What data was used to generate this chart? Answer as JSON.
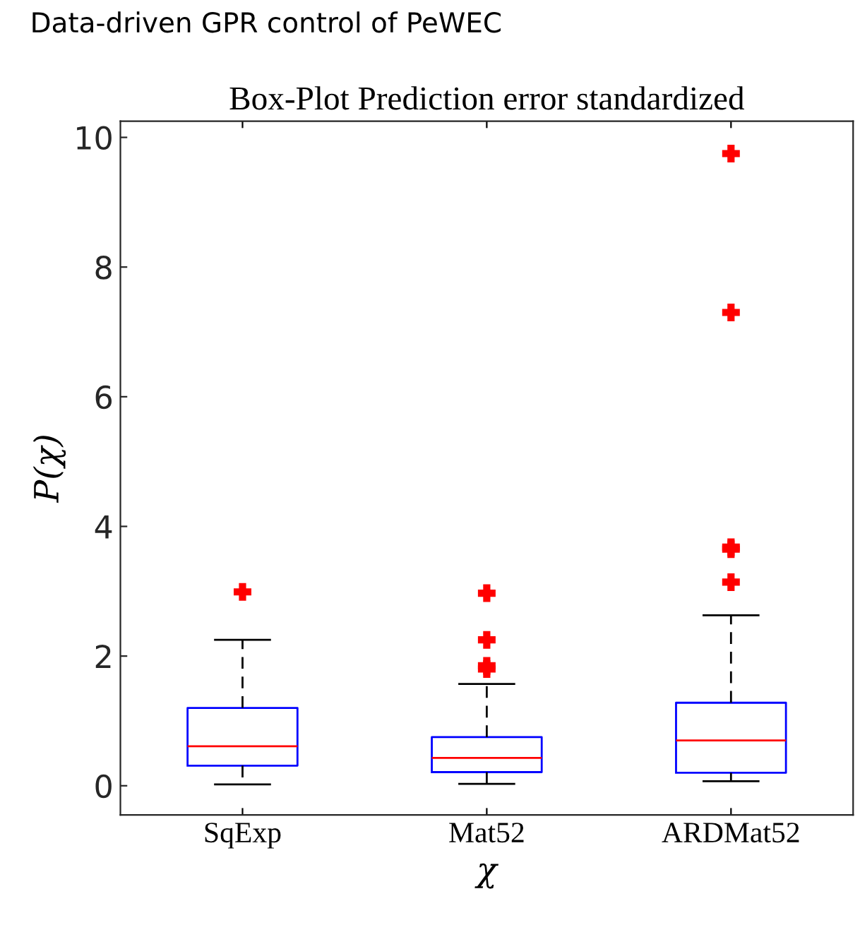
{
  "chart_data": {
    "type": "box",
    "title": "Box-Plot Prediction error standardized",
    "subtitle": "Data-driven GPR control of PeWEC",
    "xlabel": "χ",
    "ylabel": "P(χ)",
    "categories": [
      "SqExp",
      "Mat52",
      "ARDMat52"
    ],
    "boxes": [
      {
        "low": 0.02,
        "q1": 0.31,
        "median": 0.61,
        "q3": 1.2,
        "high": 2.25,
        "outliers": [
          2.99
        ]
      },
      {
        "low": 0.03,
        "q1": 0.21,
        "median": 0.43,
        "q3": 0.75,
        "high": 1.57,
        "outliers": [
          1.8,
          1.85,
          2.25,
          2.97
        ]
      },
      {
        "low": 0.07,
        "q1": 0.2,
        "median": 0.7,
        "q3": 1.28,
        "high": 2.63,
        "outliers": [
          3.14,
          3.65,
          3.68,
          7.3,
          9.75
        ]
      }
    ],
    "colors": [
      "#0000ff",
      "#0000ff",
      "#0000ff"
    ],
    "marker": "cross",
    "ylim": [
      -0.45,
      10.25
    ],
    "yticks": [
      0,
      2,
      4,
      6,
      8,
      10
    ],
    "grid": false
  }
}
